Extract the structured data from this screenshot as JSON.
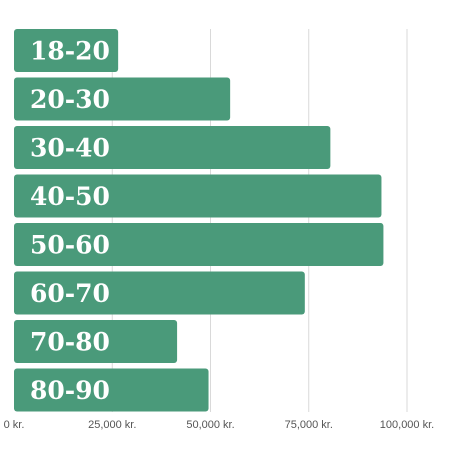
{
  "chart_data": {
    "type": "bar",
    "orientation": "horizontal",
    "categories": [
      "18-20",
      "20-30",
      "30-40",
      "40-50",
      "50-60",
      "60-70",
      "70-80",
      "80-90"
    ],
    "values": [
      26500,
      55000,
      80500,
      93500,
      94000,
      74000,
      41500,
      49500
    ],
    "xlim": [
      0,
      100000
    ],
    "xticks": [
      0,
      25000,
      50000,
      75000,
      100000
    ],
    "xtick_labels": [
      "0 kr.",
      "25,000 kr.",
      "50,000 kr.",
      "75,000 kr.",
      "100,000 kr."
    ],
    "title": "",
    "xlabel": "",
    "ylabel": "",
    "grid": "vertical",
    "legend": "none",
    "colors": {
      "bar": "#4a9a7a",
      "label": "#ffffff",
      "grid": "#d9d9d9",
      "tick": "#555555"
    }
  }
}
